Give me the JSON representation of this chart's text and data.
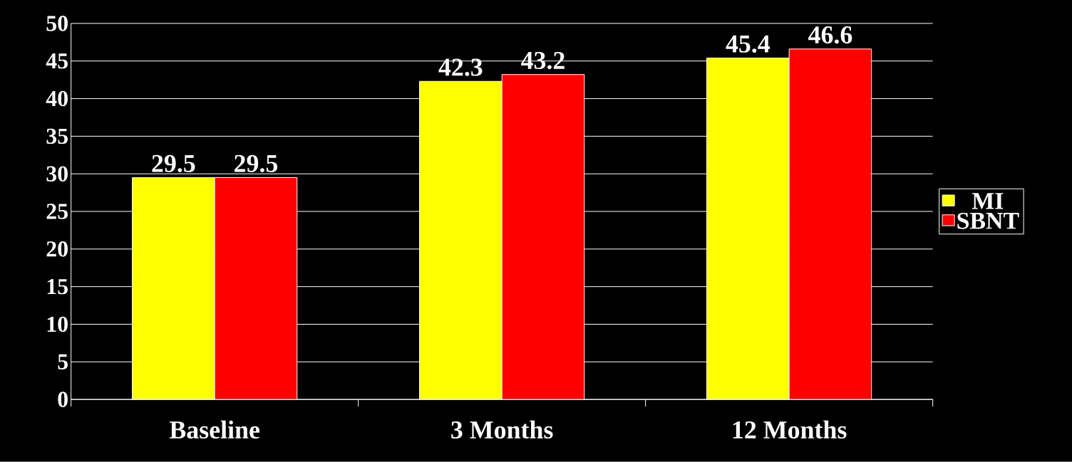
{
  "chart_data": {
    "type": "bar",
    "categories": [
      "Baseline",
      "3 Months",
      "12 Months"
    ],
    "series": [
      {
        "name": "MI",
        "color": "#ffff00",
        "values": [
          29.5,
          42.3,
          45.4
        ]
      },
      {
        "name": "SBNT",
        "color": "#ff0000",
        "values": [
          29.5,
          43.2,
          46.6
        ]
      }
    ],
    "ylim": [
      0,
      50
    ],
    "yticks": [
      0,
      5,
      10,
      15,
      20,
      25,
      30,
      35,
      40,
      45,
      50
    ],
    "grid": "y",
    "legend": "right",
    "data_labels": true
  }
}
